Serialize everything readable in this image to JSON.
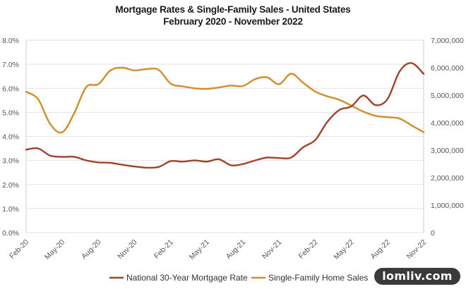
{
  "chart_data": {
    "type": "line",
    "title": "Mortgage Rates & Single-Family Sales - United States",
    "subtitle": "February 2020 - November 2022",
    "x_ticks": [
      "Feb-20",
      "May-20",
      "Aug-20",
      "Nov-20",
      "Feb-21",
      "May-21",
      "Aug-21",
      "Nov-21",
      "Feb-22",
      "May-22",
      "Aug-22",
      "Nov-22"
    ],
    "y_left": {
      "ticks": [
        "0.0%",
        "1.0%",
        "2.0%",
        "3.0%",
        "4.0%",
        "5.0%",
        "6.0%",
        "7.0%",
        "8.0%"
      ],
      "lim": [
        0,
        8
      ]
    },
    "y_right": {
      "ticks": [
        "0",
        "1,000,000",
        "2,000,000",
        "3,000,000",
        "4,000,000",
        "5,000,000",
        "6,000,000",
        "7,000,000"
      ],
      "lim": [
        0,
        7000000
      ]
    },
    "grid": "horizontal",
    "legend_position": "bottom",
    "series": [
      {
        "name": "National 30-Year Mortgage Rate",
        "axis": "left",
        "color": "#a0432a",
        "x": [
          "2020-02",
          "2020-03",
          "2020-04",
          "2020-05",
          "2020-06",
          "2020-07",
          "2020-08",
          "2020-09",
          "2020-10",
          "2020-11",
          "2020-12",
          "2021-01",
          "2021-02",
          "2021-03",
          "2021-04",
          "2021-05",
          "2021-06",
          "2021-07",
          "2021-08",
          "2021-09",
          "2021-10",
          "2021-11",
          "2021-12",
          "2022-01",
          "2022-02",
          "2022-03",
          "2022-04",
          "2022-05",
          "2022-06",
          "2022-07",
          "2022-08",
          "2022-09",
          "2022-10",
          "2022-11"
        ],
        "values": [
          3.45,
          3.5,
          3.2,
          3.15,
          3.15,
          3.0,
          2.92,
          2.9,
          2.82,
          2.75,
          2.7,
          2.73,
          2.97,
          2.95,
          3.0,
          2.95,
          3.05,
          2.8,
          2.85,
          3.0,
          3.12,
          3.1,
          3.12,
          3.55,
          3.85,
          4.6,
          5.1,
          5.25,
          5.7,
          5.3,
          5.55,
          6.7,
          7.05,
          6.6
        ]
      },
      {
        "name": "Single-Family Home Sales",
        "axis": "right",
        "color": "#d38c2a",
        "x": [
          "2020-02",
          "2020-03",
          "2020-04",
          "2020-05",
          "2020-06",
          "2020-07",
          "2020-08",
          "2020-09",
          "2020-10",
          "2020-11",
          "2020-12",
          "2021-01",
          "2021-02",
          "2021-03",
          "2021-04",
          "2021-05",
          "2021-06",
          "2021-07",
          "2021-08",
          "2021-09",
          "2021-10",
          "2021-11",
          "2021-12",
          "2022-01",
          "2022-02",
          "2022-03",
          "2022-04",
          "2022-05",
          "2022-06",
          "2022-07",
          "2022-08",
          "2022-09",
          "2022-10",
          "2022-11"
        ],
        "values": [
          5120000,
          4850000,
          3950000,
          3650000,
          4350000,
          5300000,
          5400000,
          5900000,
          6000000,
          5900000,
          5950000,
          5920000,
          5420000,
          5320000,
          5250000,
          5230000,
          5280000,
          5350000,
          5330000,
          5580000,
          5650000,
          5400000,
          5780000,
          5450000,
          5130000,
          4960000,
          4830000,
          4620000,
          4400000,
          4250000,
          4200000,
          4150000,
          3900000,
          3650000
        ]
      }
    ]
  },
  "watermark": "lomliv.com"
}
